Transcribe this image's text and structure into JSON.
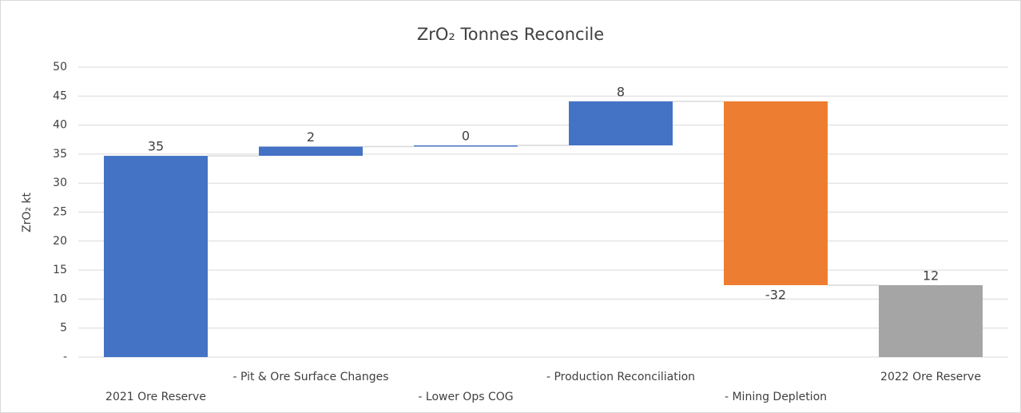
{
  "chart_data": {
    "type": "waterfall",
    "title": "ZrO₂ Tonnes Reconcile",
    "y_label": "ZrO₂ kt",
    "categories": [
      "2021 Ore Reserve",
      "- Pit & Ore Surface Changes",
      "- Lower Ops COG",
      "- Production Reconciliation",
      "- Mining Depletion",
      "2022 Ore Reserve"
    ],
    "values": [
      34.7,
      1.6,
      0.2,
      7.6,
      -31.7,
      12.4
    ],
    "value_labels": [
      "35",
      "2",
      "0",
      "8",
      "-32",
      "12"
    ],
    "totals": [
      true,
      false,
      false,
      false,
      false,
      true
    ],
    "colors": [
      "#4472c4",
      "#4472c4",
      "#4472c4",
      "#4472c4",
      "#ed7d31",
      "#a5a5a5"
    ],
    "ylim": [
      0,
      50
    ],
    "yticks": [
      {
        "value": 0,
        "label": "-"
      },
      5,
      10,
      15,
      20,
      25,
      30,
      35,
      40,
      45,
      50
    ],
    "grid": true
  }
}
